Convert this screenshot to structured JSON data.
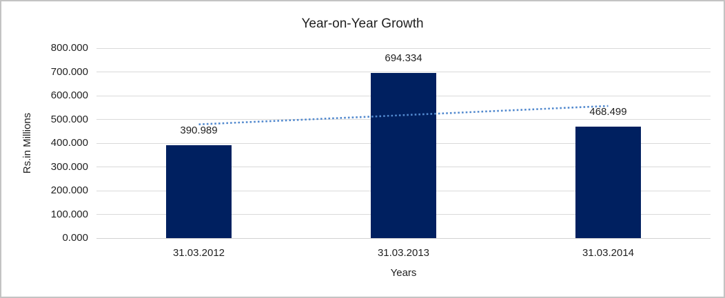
{
  "frame": {
    "background": "#ffffff",
    "border_color": "#c3c3c3"
  },
  "chart_data": {
    "type": "bar",
    "title": "Year-on-Year Growth",
    "xlabel": "Years",
    "ylabel": "Rs.in Millions",
    "categories": [
      "31.03.2012",
      "31.03.2013",
      "31.03.2014"
    ],
    "values": [
      390.989,
      694.334,
      468.499
    ],
    "data_labels": [
      "390.989",
      "694.334",
      "468.499"
    ],
    "ylim": [
      0,
      800
    ],
    "ytick_labels": [
      "800.000",
      "700.000",
      "600.000",
      "500.000",
      "400.000",
      "300.000",
      "200.000",
      "100.000",
      "0.000"
    ],
    "grid": "horizontal",
    "legend": "none",
    "bar_color": "#002060",
    "gridline_color": "#d9d9d9",
    "axis_line_color": "#d2d2d2",
    "text_color": "#1f1f1f",
    "trendline": {
      "fit": "linear",
      "style": "dotted",
      "color": "#5289ce"
    }
  }
}
